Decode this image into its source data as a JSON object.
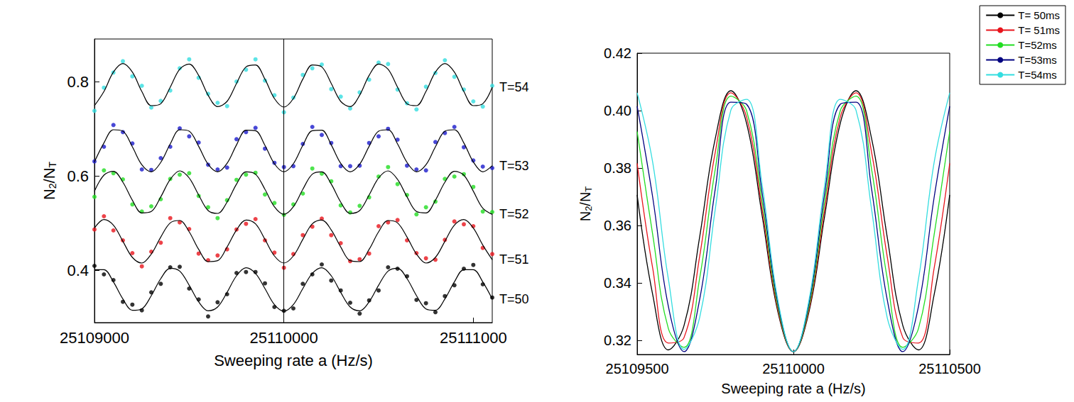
{
  "chart_data": [
    {
      "type": "scatter",
      "xlabel": "Sweeping rate a (Hz/s)",
      "ylabel": "N2/NT",
      "marker": "circle",
      "grid": false,
      "reference_x": 25110000,
      "xlim": [
        25109000,
        25111100
      ],
      "xticks": [
        25109000,
        25110000,
        25111000
      ],
      "ylim": [
        0.29,
        0.89
      ],
      "yticks": [
        0.4,
        0.6,
        0.8
      ],
      "x": [
        25109000,
        25109050,
        25109100,
        25109150,
        25109200,
        25109250,
        25109300,
        25109350,
        25109400,
        25109450,
        25109500,
        25109550,
        25109600,
        25109650,
        25109700,
        25109750,
        25109800,
        25109850,
        25109900,
        25109950,
        25110000,
        25110050,
        25110100,
        25110150,
        25110200,
        25110250,
        25110300,
        25110350,
        25110400,
        25110450,
        25110500,
        25110550,
        25110600,
        25110650,
        25110700,
        25110750,
        25110800,
        25110850,
        25110900,
        25110950,
        25111000,
        25111050,
        25111100
      ],
      "series": [
        {
          "name": "T=50",
          "color": "#000000",
          "values": [
            0.41,
            0.392,
            0.38,
            0.334,
            0.328,
            0.316,
            0.354,
            0.372,
            0.407,
            0.408,
            0.362,
            0.339,
            0.303,
            0.333,
            0.35,
            0.395,
            0.397,
            0.397,
            0.373,
            0.323,
            0.315,
            0.32,
            0.372,
            0.392,
            0.413,
            0.379,
            0.358,
            0.332,
            0.309,
            0.337,
            0.358,
            0.407,
            0.404,
            0.388,
            0.338,
            0.331,
            0.312,
            0.346,
            0.369,
            0.404,
            0.412,
            0.371,
            0.343
          ],
          "fit": [
            0.402,
            0.402,
            0.376,
            0.34,
            0.316,
            0.319,
            0.347,
            0.383,
            0.405,
            0.399,
            0.369,
            0.334,
            0.315,
            0.323,
            0.354,
            0.389,
            0.406,
            0.394,
            0.362,
            0.328,
            0.314,
            0.328,
            0.362,
            0.394,
            0.406,
            0.389,
            0.354,
            0.323,
            0.315,
            0.334,
            0.369,
            0.399,
            0.405,
            0.383,
            0.347,
            0.319,
            0.316,
            0.34,
            0.376,
            0.402,
            0.402,
            0.376,
            0.34
          ]
        },
        {
          "name": "T=51",
          "color": "#e8141c",
          "values": [
            0.487,
            0.515,
            0.485,
            0.464,
            0.437,
            0.409,
            0.44,
            0.459,
            0.511,
            0.502,
            0.488,
            0.436,
            0.422,
            0.432,
            0.445,
            0.487,
            0.499,
            0.509,
            0.464,
            0.438,
            0.406,
            0.435,
            0.475,
            0.493,
            0.51,
            0.475,
            0.458,
            0.42,
            0.424,
            0.436,
            0.494,
            0.502,
            0.507,
            0.464,
            0.437,
            0.426,
            0.423,
            0.465,
            0.504,
            0.498,
            0.494,
            0.448,
            0.435
          ],
          "fit": [
            0.49,
            0.508,
            0.496,
            0.462,
            0.428,
            0.416,
            0.435,
            0.471,
            0.501,
            0.506,
            0.482,
            0.445,
            0.419,
            0.421,
            0.45,
            0.486,
            0.507,
            0.499,
            0.466,
            0.431,
            0.416,
            0.431,
            0.466,
            0.499,
            0.507,
            0.486,
            0.45,
            0.421,
            0.419,
            0.445,
            0.482,
            0.506,
            0.501,
            0.471,
            0.435,
            0.416,
            0.428,
            0.462,
            0.496,
            0.508,
            0.49,
            0.454,
            0.423
          ]
        },
        {
          "name": "T=52",
          "color": "#22dd22",
          "values": [
            0.556,
            0.612,
            0.606,
            0.593,
            0.54,
            0.525,
            0.536,
            0.551,
            0.594,
            0.603,
            0.606,
            0.558,
            0.534,
            0.511,
            0.549,
            0.592,
            0.603,
            0.607,
            0.561,
            0.543,
            0.518,
            0.54,
            0.563,
            0.616,
            0.605,
            0.589,
            0.538,
            0.523,
            0.537,
            0.555,
            0.599,
            0.619,
            0.583,
            0.56,
            0.519,
            0.534,
            0.546,
            0.594,
            0.599,
            0.604,
            0.577,
            0.525,
            0.524
          ],
          "fit": [
            0.568,
            0.602,
            0.61,
            0.587,
            0.549,
            0.522,
            0.525,
            0.556,
            0.593,
            0.611,
            0.596,
            0.56,
            0.527,
            0.521,
            0.545,
            0.583,
            0.609,
            0.604,
            0.572,
            0.535,
            0.519,
            0.535,
            0.572,
            0.604,
            0.609,
            0.583,
            0.545,
            0.521,
            0.527,
            0.56,
            0.596,
            0.611,
            0.593,
            0.556,
            0.525,
            0.522,
            0.549,
            0.587,
            0.61,
            0.602,
            0.568,
            0.532,
            0.519
          ]
        },
        {
          "name": "T=53",
          "color": "#1a1acc",
          "values": [
            0.631,
            0.662,
            0.708,
            0.693,
            0.669,
            0.614,
            0.613,
            0.638,
            0.662,
            0.701,
            0.684,
            0.671,
            0.624,
            0.614,
            0.618,
            0.678,
            0.693,
            0.702,
            0.658,
            0.628,
            0.619,
            0.621,
            0.668,
            0.704,
            0.687,
            0.67,
            0.621,
            0.621,
            0.622,
            0.67,
            0.684,
            0.7,
            0.677,
            0.622,
            0.614,
            0.612,
            0.672,
            0.691,
            0.704,
            0.661,
            0.633,
            0.62,
            0.617
          ],
          "fit": [
            0.63,
            0.67,
            0.698,
            0.695,
            0.662,
            0.624,
            0.609,
            0.629,
            0.668,
            0.698,
            0.695,
            0.663,
            0.625,
            0.609,
            0.627,
            0.666,
            0.697,
            0.696,
            0.665,
            0.626,
            0.609,
            0.626,
            0.665,
            0.696,
            0.697,
            0.666,
            0.627,
            0.609,
            0.625,
            0.663,
            0.695,
            0.698,
            0.668,
            0.629,
            0.609,
            0.624,
            0.662,
            0.695,
            0.698,
            0.67,
            0.63,
            0.609,
            0.622
          ]
        },
        {
          "name": "T=54",
          "color": "#33dde0",
          "values": [
            0.738,
            0.787,
            0.819,
            0.843,
            0.811,
            0.791,
            0.745,
            0.759,
            0.781,
            0.828,
            0.847,
            0.808,
            0.774,
            0.755,
            0.748,
            0.8,
            0.825,
            0.847,
            0.802,
            0.771,
            0.735,
            0.766,
            0.814,
            0.828,
            0.836,
            0.784,
            0.768,
            0.743,
            0.777,
            0.804,
            0.84,
            0.837,
            0.783,
            0.754,
            0.741,
            0.789,
            0.818,
            0.845,
            0.81,
            0.783,
            0.758,
            0.747,
            0.791
          ],
          "fit": [
            0.749,
            0.779,
            0.82,
            0.838,
            0.82,
            0.779,
            0.749,
            0.753,
            0.788,
            0.826,
            0.837,
            0.813,
            0.771,
            0.747,
            0.758,
            0.796,
            0.831,
            0.835,
            0.805,
            0.764,
            0.746,
            0.764,
            0.805,
            0.835,
            0.831,
            0.796,
            0.758,
            0.747,
            0.771,
            0.813,
            0.837,
            0.826,
            0.788,
            0.753,
            0.749,
            0.779,
            0.82,
            0.838,
            0.82,
            0.779,
            0.749,
            0.753,
            0.788
          ]
        }
      ]
    },
    {
      "type": "line",
      "xlabel": "Sweeping rate a (Hz/s)",
      "ylabel": "N2/NT",
      "legend": "top-right",
      "grid": false,
      "xlim": [
        25109500,
        25110500
      ],
      "xticks": [
        25109500,
        25110000,
        25110500
      ],
      "ylim": [
        0.315,
        0.42
      ],
      "yticks": [
        0.32,
        0.34,
        0.36,
        0.38,
        {
          "value": 0.4,
          "label": "0.40"
        },
        0.42
      ],
      "x": [
        25109500,
        25109550,
        25109600,
        25109650,
        25109700,
        25109750,
        25109800,
        25109850,
        25109900,
        25109950,
        25110000,
        25110050,
        25110100,
        25110150,
        25110200,
        25110250,
        25110300,
        25110350,
        25110400,
        25110450,
        25110500
      ],
      "series": [
        {
          "name": "T= 50ms",
          "color": "#000000",
          "values": [
            0.3706,
            0.3357,
            0.3166,
            0.3251,
            0.356,
            0.3903,
            0.4069,
            0.3956,
            0.3633,
            0.33,
            0.316,
            0.33,
            0.3633,
            0.3956,
            0.4069,
            0.3903,
            0.356,
            0.3251,
            0.3166,
            0.3357,
            0.3706
          ]
        },
        {
          "name": "T= 51ms",
          "color": "#e8141c",
          "values": [
            0.3816,
            0.3449,
            0.319,
            0.3209,
            0.3492,
            0.3855,
            0.4062,
            0.3978,
            0.3656,
            0.3308,
            0.316,
            0.3308,
            0.3656,
            0.3978,
            0.4062,
            0.3855,
            0.3492,
            0.3209,
            0.319,
            0.3449,
            0.3816
          ]
        },
        {
          "name": "T=52ms",
          "color": "#22dd22",
          "values": [
            0.3927,
            0.3566,
            0.324,
            0.3175,
            0.3416,
            0.3796,
            0.405,
            0.4,
            0.3683,
            0.3318,
            0.316,
            0.3318,
            0.3683,
            0.4,
            0.405,
            0.3796,
            0.3416,
            0.3175,
            0.324,
            0.3566,
            0.3927
          ]
        },
        {
          "name": "T=53ms",
          "color": "#000080",
          "values": [
            0.4015,
            0.3696,
            0.3317,
            0.316,
            0.3342,
            0.3727,
            0.4029,
            0.4022,
            0.3712,
            0.333,
            0.316,
            0.333,
            0.3712,
            0.4022,
            0.4029,
            0.3727,
            0.3342,
            0.316,
            0.3317,
            0.3696,
            0.4015
          ]
        },
        {
          "name": "T=54ms",
          "color": "#33dde0",
          "values": [
            0.4062,
            0.3818,
            0.3412,
            0.3168,
            0.3279,
            0.3657,
            0.4002,
            0.4039,
            0.374,
            0.3341,
            0.316,
            0.3341,
            0.374,
            0.4039,
            0.4002,
            0.3657,
            0.3279,
            0.3168,
            0.3412,
            0.3818,
            0.4062
          ]
        }
      ]
    }
  ]
}
